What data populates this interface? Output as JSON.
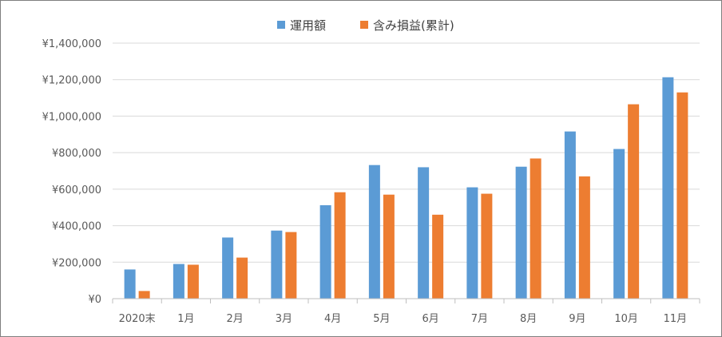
{
  "chart_data": {
    "type": "bar",
    "title": "",
    "xlabel": "",
    "ylabel": "",
    "categories": [
      "2020末",
      "1月",
      "2月",
      "3月",
      "4月",
      "5月",
      "6月",
      "7月",
      "8月",
      "9月",
      "10月",
      "11月"
    ],
    "series": [
      {
        "name": "運用額",
        "color": "#5b9bd5",
        "values": [
          160000,
          190000,
          335000,
          373000,
          512000,
          732000,
          720000,
          610000,
          723000,
          916000,
          820000,
          1213000
        ]
      },
      {
        "name": "含み損益(累計)",
        "color": "#ed7d31",
        "values": [
          42000,
          186000,
          225000,
          365000,
          583000,
          570000,
          460000,
          575000,
          768000,
          670000,
          1065000,
          1130000
        ]
      }
    ],
    "ylim": [
      0,
      1400000
    ],
    "yticks": [
      0,
      200000,
      400000,
      600000,
      800000,
      1000000,
      1200000,
      1400000
    ],
    "ytick_labels": [
      "¥0",
      "¥200,000",
      "¥400,000",
      "¥600,000",
      "¥800,000",
      "¥1,000,000",
      "¥1,200,000",
      "¥1,400,000"
    ],
    "grid": true,
    "legend_position": "top-center"
  }
}
